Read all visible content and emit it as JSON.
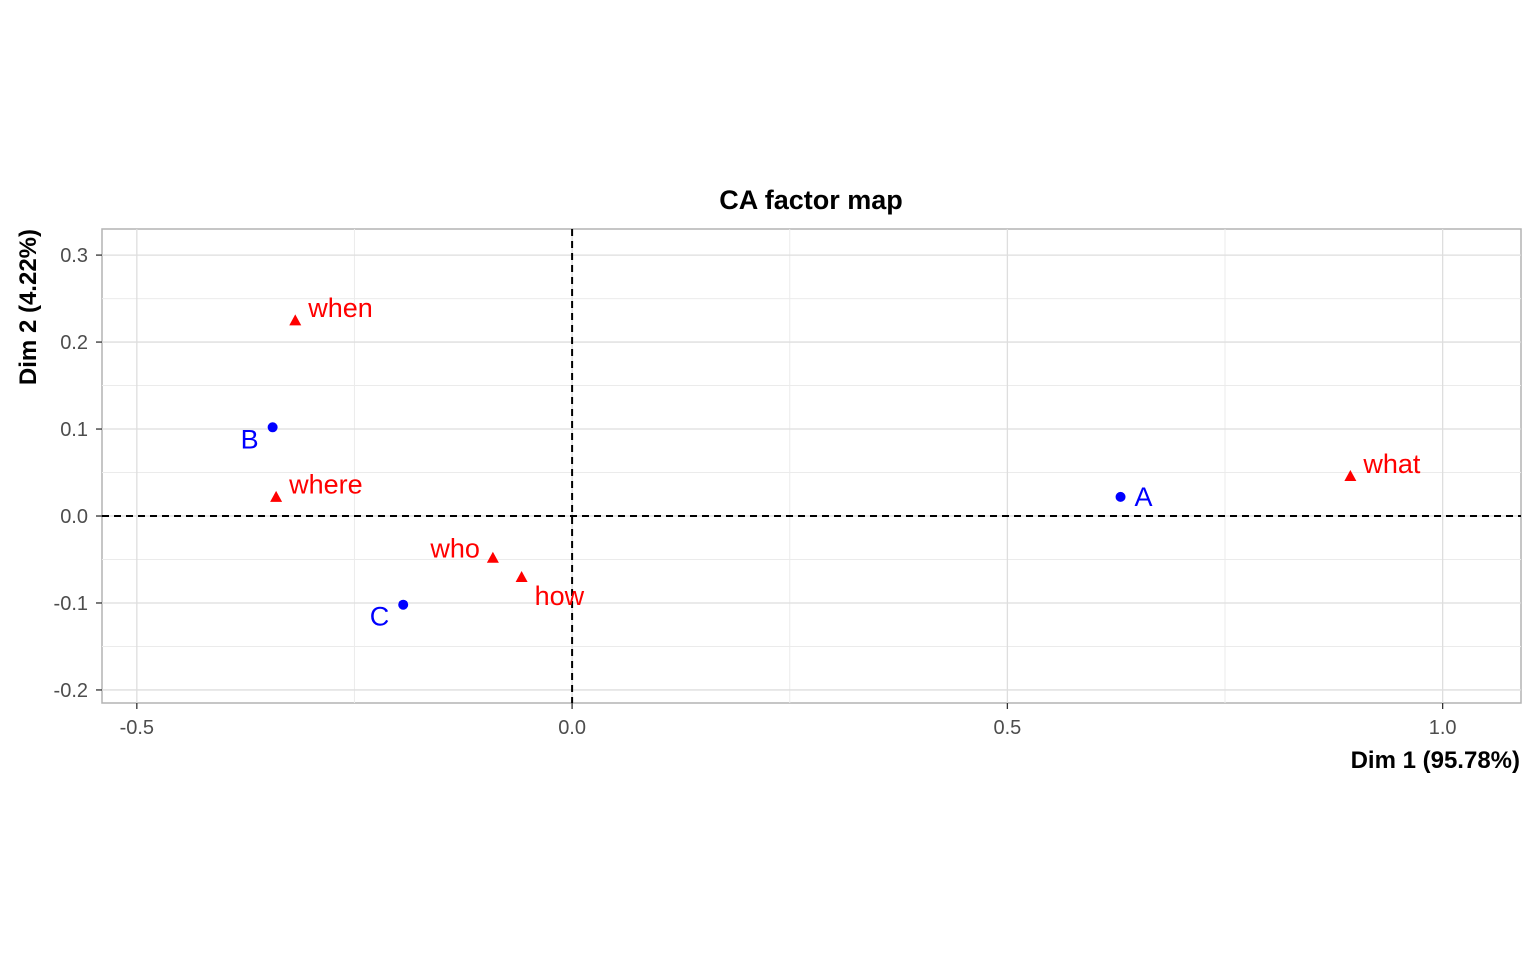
{
  "chart_data": {
    "type": "scatter",
    "title": "CA factor map",
    "xlabel": "Dim 1 (95.78%)",
    "ylabel": "Dim 2 (4.22%)",
    "xlim": [
      -0.54,
      1.09
    ],
    "ylim": [
      -0.215,
      0.33
    ],
    "xticks": [
      -0.5,
      0.0,
      0.5,
      1.0
    ],
    "xtick_labels": [
      "-0.5",
      "0.0",
      "0.5",
      "1.0"
    ],
    "yticks": [
      -0.2,
      -0.1,
      0.0,
      0.1,
      0.2,
      0.3
    ],
    "ytick_labels": [
      "-0.2",
      "-0.1",
      "0.0",
      "0.1",
      "0.2",
      "0.3"
    ],
    "grid": true,
    "reference_lines": {
      "x": 0,
      "y": 0,
      "style": "dashed"
    },
    "series": [
      {
        "kind": "rows",
        "color": "#0000ff",
        "marker": "circle",
        "points": [
          {
            "label": "A",
            "x": 0.63,
            "y": 0.022,
            "label_pos": "right"
          },
          {
            "label": "B",
            "x": -0.344,
            "y": 0.102,
            "label_pos": "left-below"
          },
          {
            "label": "C",
            "x": -0.194,
            "y": -0.102,
            "label_pos": "left-below"
          }
        ]
      },
      {
        "kind": "columns",
        "color": "#ff0000",
        "marker": "triangle",
        "points": [
          {
            "label": "when",
            "x": -0.318,
            "y": 0.224,
            "label_pos": "right-above"
          },
          {
            "label": "where",
            "x": -0.34,
            "y": 0.021,
            "label_pos": "right-above"
          },
          {
            "label": "who",
            "x": -0.091,
            "y": -0.049,
            "label_pos": "left-above"
          },
          {
            "label": "how",
            "x": -0.058,
            "y": -0.071,
            "label_pos": "right-below"
          },
          {
            "label": "what",
            "x": 0.894,
            "y": 0.045,
            "label_pos": "right-above"
          }
        ]
      }
    ]
  }
}
